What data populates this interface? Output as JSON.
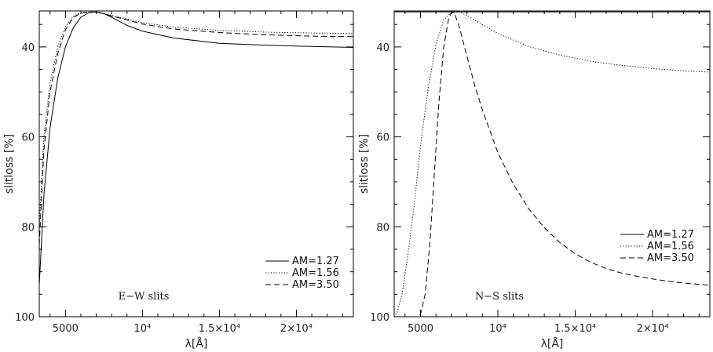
{
  "chart_data": [
    {
      "type": "line",
      "panel_label": "E−W slits",
      "xlabel": "λ[Å]",
      "ylabel": "slitloss [%]",
      "xlim": [
        3300,
        23700
      ],
      "ylim": [
        32,
        100
      ],
      "y_inverted": true,
      "xticks": [
        5000,
        10000,
        15000,
        20000
      ],
      "xtick_labels": [
        "5000",
        "10⁴",
        "1.5×10⁴",
        "2×10⁴"
      ],
      "yticks": [
        40,
        60,
        80,
        100
      ],
      "ytick_labels": [
        "40",
        "60",
        "80",
        "100"
      ],
      "legend_position": "bottom-right",
      "series": [
        {
          "name": "AM=1.27",
          "style": "solid",
          "x": [
            3300,
            3600,
            4000,
            4500,
            5000,
            5500,
            6000,
            6500,
            7000,
            7500,
            8000,
            9000,
            10000,
            12000,
            15000,
            18000,
            21000,
            23700
          ],
          "y": [
            93,
            73,
            58,
            47,
            40,
            35.8,
            33.4,
            32.4,
            32.2,
            32.6,
            33.4,
            35.2,
            36.5,
            38,
            39.2,
            39.6,
            39.9,
            40.1
          ]
        },
        {
          "name": "AM=1.56",
          "style": "dotted",
          "x": [
            3300,
            3600,
            4000,
            4500,
            5000,
            5500,
            6000,
            6500,
            7000,
            7500,
            8000,
            9000,
            10000,
            12000,
            15000,
            18000,
            21000,
            23700
          ],
          "y": [
            80,
            60,
            48,
            40,
            35.5,
            33.2,
            32.4,
            32.2,
            32.3,
            32.6,
            33.0,
            33.8,
            34.6,
            35.6,
            36.3,
            36.7,
            36.9,
            37.0
          ]
        },
        {
          "name": "AM=3.50",
          "style": "dashed",
          "x": [
            3300,
            3600,
            4000,
            4500,
            5000,
            5500,
            6000,
            6500,
            7000,
            7500,
            8000,
            9000,
            10000,
            12000,
            15000,
            18000,
            21000,
            23700
          ],
          "y": [
            84,
            63,
            50,
            41.5,
            36.2,
            33.5,
            32.5,
            32.2,
            32.3,
            32.6,
            33.1,
            34.0,
            34.9,
            36.0,
            36.8,
            37.3,
            37.6,
            37.7
          ]
        }
      ]
    },
    {
      "type": "line",
      "panel_label": "N−S slits",
      "xlabel": "λ[Å]",
      "ylabel": "slitloss [%]",
      "xlim": [
        3300,
        23700
      ],
      "ylim": [
        32,
        100
      ],
      "y_inverted": true,
      "xticks": [
        5000,
        10000,
        15000,
        20000
      ],
      "xtick_labels": [
        "5000",
        "10⁴",
        "1.5×10⁴",
        "2×10⁴"
      ],
      "yticks": [
        40,
        60,
        80,
        100
      ],
      "ytick_labels": [
        "40",
        "60",
        "80",
        "100"
      ],
      "legend_position": "bottom-right",
      "series": [
        {
          "name": "AM=1.27",
          "style": "solid",
          "x": [
            3300,
            23700
          ],
          "y": [
            32.2,
            32.2
          ]
        },
        {
          "name": "AM=1.56",
          "style": "dotted",
          "x": [
            3300,
            3500,
            3800,
            4200,
            4600,
            5000,
            5500,
            6000,
            6500,
            7000,
            7500,
            8000,
            9000,
            10000,
            12000,
            14000,
            16000,
            18000,
            20000,
            22000,
            23700
          ],
          "y": [
            100,
            99,
            95,
            86,
            75,
            62,
            49,
            39.5,
            34,
            32.3,
            32.2,
            33.0,
            35.0,
            37.0,
            39.9,
            41.8,
            43.2,
            44.1,
            44.8,
            45.3,
            45.6
          ]
        },
        {
          "name": "AM=3.50",
          "style": "dashed",
          "x": [
            3300,
            4800,
            5000,
            5300,
            5600,
            5900,
            6200,
            6500,
            6800,
            7000,
            7200,
            7500,
            8000,
            8500,
            9000,
            10000,
            11000,
            12000,
            13000,
            14000,
            15000,
            16000,
            17000,
            18000,
            19000,
            20000,
            21000,
            22000,
            23700
          ],
          "y": [
            100,
            100,
            99.5,
            95,
            84,
            68,
            52,
            40,
            34,
            32.3,
            32.6,
            35.5,
            42,
            48.5,
            54,
            63.5,
            70.5,
            76,
            80.2,
            83.5,
            86,
            87.9,
            89.3,
            90.3,
            91.0,
            91.6,
            92.1,
            92.5,
            93.0
          ]
        }
      ]
    }
  ]
}
